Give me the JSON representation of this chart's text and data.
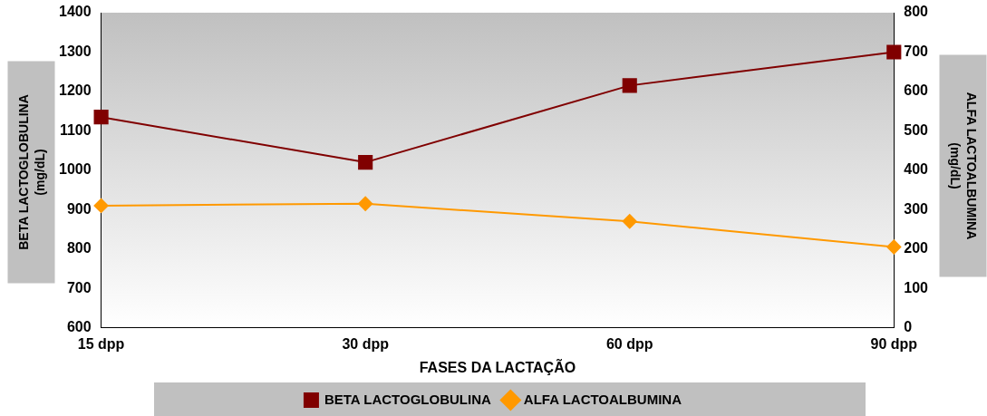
{
  "chart_data": {
    "type": "line",
    "xlabel": "FASES DA LACTAÇÃO",
    "ylabel": "BETA LACTOGLOBULINA\n(mg/dL)",
    "y2label": "ALFA LACTOALBUMINA\n(mg/dL)",
    "categories": [
      "15 dpp",
      "30 dpp",
      "60 dpp",
      "90 dpp"
    ],
    "series": [
      {
        "name": "BETA LACTOGLOBULINA",
        "color": "#800000",
        "marker": "square",
        "values": [
          1135,
          1020,
          1215,
          1300
        ]
      },
      {
        "name": "ALFA LACTOALBUMINA",
        "color": "#ff9900",
        "marker": "diamond",
        "axis": "y2",
        "values": [
          310,
          315,
          270,
          205
        ]
      }
    ],
    "ylim": [
      600,
      1400
    ],
    "yticks": [
      600,
      700,
      800,
      900,
      1000,
      1100,
      1200,
      1300,
      1400
    ],
    "y2lim": [
      0,
      800
    ],
    "y2ticks": [
      0,
      100,
      200,
      300,
      400,
      500,
      600,
      700,
      800
    ],
    "grid": false,
    "legend": "bottom",
    "line_style": "solid"
  }
}
